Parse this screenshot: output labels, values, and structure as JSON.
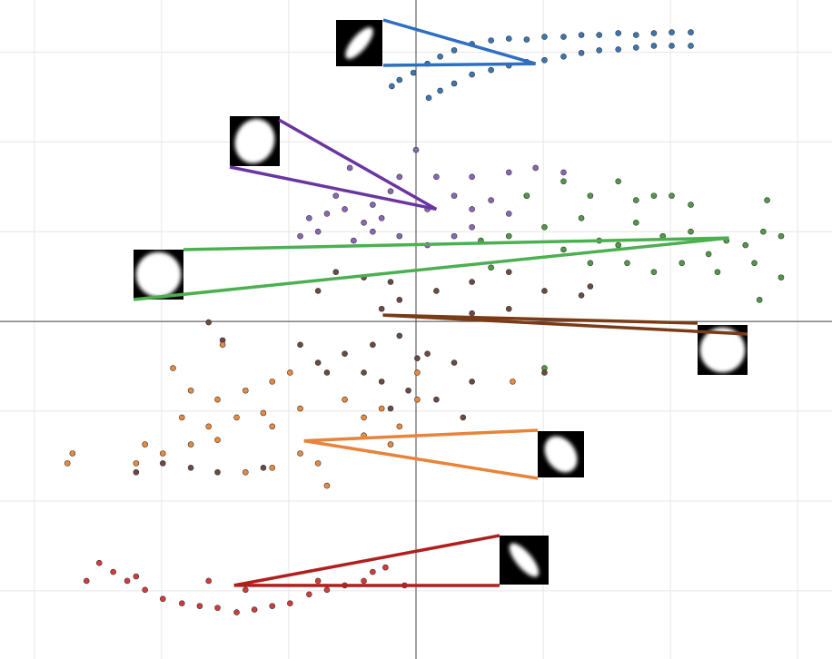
{
  "chart_data": {
    "type": "scatter",
    "title": "",
    "xlabel": "",
    "ylabel": "",
    "xlim": [
      -3.27,
      3.27
    ],
    "ylim": [
      -3.76,
      3.58
    ],
    "grid": true,
    "grid_step": {
      "x": 1,
      "y": 1
    },
    "axes_through_origin": true,
    "tick_labels_shown": false,
    "legend": "none",
    "colors": {
      "grid": "#e6e6e6",
      "axis": "#444444",
      "marker_edge": "#333333"
    },
    "series": [
      {
        "color": "#3a78b5",
        "line_color": "#2f6fbf",
        "thumbnail": "diagonal-ellipse-rising",
        "anchor": [
          0.94,
          2.87
        ],
        "points": [
          [
            -0.19,
            2.62
          ],
          [
            -0.13,
            2.69
          ],
          [
            -0.02,
            2.77
          ],
          [
            0.09,
            2.87
          ],
          [
            0.19,
            2.95
          ],
          [
            0.3,
            3.02
          ],
          [
            0.44,
            3.09
          ],
          [
            0.59,
            3.13
          ],
          [
            0.73,
            3.15
          ],
          [
            0.87,
            3.14
          ],
          [
            1.01,
            3.17
          ],
          [
            1.16,
            3.17
          ],
          [
            1.3,
            3.19
          ],
          [
            1.44,
            3.19
          ],
          [
            1.59,
            3.21
          ],
          [
            1.73,
            3.19
          ],
          [
            1.87,
            3.21
          ],
          [
            2.01,
            3.22
          ],
          [
            2.16,
            3.22
          ],
          [
            0.1,
            2.49
          ],
          [
            0.19,
            2.57
          ],
          [
            0.3,
            2.65
          ],
          [
            0.44,
            2.75
          ],
          [
            0.59,
            2.8
          ],
          [
            0.73,
            2.85
          ],
          [
            0.87,
            2.89
          ],
          [
            1.01,
            2.91
          ],
          [
            1.16,
            2.95
          ],
          [
            1.3,
            2.99
          ],
          [
            1.44,
            3.02
          ],
          [
            1.59,
            3.03
          ],
          [
            1.73,
            3.05
          ],
          [
            1.87,
            3.07
          ],
          [
            2.01,
            3.07
          ],
          [
            2.16,
            3.07
          ]
        ]
      },
      {
        "color": "#8a66b8",
        "line_color": "#6a35a0",
        "thumbnail": "round-blob",
        "anchor": [
          0.16,
          1.25
        ],
        "points": [
          [
            0,
            1.91
          ],
          [
            -0.52,
            1.71
          ],
          [
            -0.13,
            1.61
          ],
          [
            0.16,
            1.61
          ],
          [
            0.44,
            1.61
          ],
          [
            0.73,
            1.66
          ],
          [
            0.94,
            1.71
          ],
          [
            1.16,
            1.66
          ],
          [
            -0.84,
            1.15
          ],
          [
            -0.7,
            1.2
          ],
          [
            -0.56,
            1.25
          ],
          [
            -0.41,
            1.1
          ],
          [
            -0.27,
            1.15
          ],
          [
            -0.13,
            0.95
          ],
          [
            0.09,
            1.25
          ],
          [
            0.3,
            1.4
          ],
          [
            0.44,
            1.25
          ],
          [
            0.59,
            1.35
          ],
          [
            0.73,
            1.2
          ],
          [
            0.87,
            1.4
          ],
          [
            -0.49,
            0.9
          ],
          [
            -0.34,
            1.0
          ],
          [
            -0.77,
            1.0
          ],
          [
            0.09,
            0.85
          ],
          [
            0.3,
            0.95
          ],
          [
            -0.91,
            0.95
          ],
          [
            0.44,
            1.05
          ],
          [
            -0.63,
            1.4
          ],
          [
            -0.2,
            1.45
          ],
          [
            -0.34,
            1.3
          ]
        ]
      },
      {
        "color": "#4f9a45",
        "line_color": "#4caf50",
        "thumbnail": "circle",
        "anchor": [
          2.46,
          0.93
        ],
        "points": [
          [
            0.87,
            1.4
          ],
          [
            1.16,
            1.56
          ],
          [
            1.37,
            1.4
          ],
          [
            1.59,
            1.56
          ],
          [
            1.73,
            1.35
          ],
          [
            1.87,
            1.4
          ],
          [
            2.01,
            1.4
          ],
          [
            2.16,
            1.3
          ],
          [
            1.01,
            1.05
          ],
          [
            1.3,
            1.15
          ],
          [
            1.44,
            0.9
          ],
          [
            1.73,
            1.1
          ],
          [
            1.94,
            0.95
          ],
          [
            2.16,
            1.0
          ],
          [
            0.51,
            0.9
          ],
          [
            0.73,
            0.95
          ],
          [
            1.16,
            0.8
          ],
          [
            1.37,
            0.65
          ],
          [
            1.66,
            0.65
          ],
          [
            1.87,
            0.55
          ],
          [
            2.09,
            0.65
          ],
          [
            2.3,
            0.75
          ],
          [
            2.44,
            0.9
          ],
          [
            2.59,
            0.85
          ],
          [
            2.73,
            1.0
          ],
          [
            2.87,
            0.95
          ],
          [
            2.76,
            1.35
          ],
          [
            2.87,
            0.49
          ],
          [
            2.7,
            0.24
          ],
          [
            0.59,
            0.6
          ],
          [
            1.01,
            -0.52
          ],
          [
            1.59,
            0.85
          ],
          [
            2.37,
            0.55
          ],
          [
            2.66,
            0.65
          ]
        ]
      },
      {
        "color": "#6b4a42",
        "line_color": "#7a3b17",
        "thumbnail": "circle",
        "anchor": [
          -0.26,
          0.07
        ],
        "points": [
          [
            -0.77,
            0.34
          ],
          [
            -0.63,
            0.55
          ],
          [
            -0.41,
            0.49
          ],
          [
            -0.2,
            0.44
          ],
          [
            -0.27,
            0.14
          ],
          [
            -0.13,
            0.24
          ],
          [
            0.16,
            0.34
          ],
          [
            0.44,
            0.44
          ],
          [
            0.73,
            0.55
          ],
          [
            1.01,
            0.34
          ],
          [
            1.3,
            0.29
          ],
          [
            0.44,
            0.09
          ],
          [
            0.73,
            0.14
          ],
          [
            -0.91,
            -0.26
          ],
          [
            -0.77,
            -0.46
          ],
          [
            -0.56,
            -0.36
          ],
          [
            -0.34,
            -0.26
          ],
          [
            -0.13,
            -0.16
          ],
          [
            0.09,
            -0.36
          ],
          [
            0.3,
            -0.46
          ],
          [
            0.44,
            -0.67
          ],
          [
            0.16,
            -0.87
          ],
          [
            0.37,
            -1.07
          ],
          [
            -0.27,
            -0.67
          ],
          [
            -0.06,
            -0.77
          ],
          [
            -0.7,
            -0.57
          ],
          [
            -1.63,
            -0.01
          ],
          [
            -1.52,
            -0.21
          ],
          [
            -2.2,
            -1.68
          ],
          [
            -1.99,
            -1.58
          ],
          [
            -1.77,
            -1.63
          ],
          [
            -1.56,
            -1.68
          ],
          [
            -1.2,
            -1.63
          ],
          [
            -0.41,
            -0.57
          ],
          [
            -0.2,
            -0.97
          ],
          [
            0.01,
            -0.41
          ],
          [
            1.01,
            -0.57
          ],
          [
            1.37,
            0.39
          ]
        ]
      },
      {
        "color": "#ec8a3c",
        "line_color": "#e8833a",
        "thumbnail": "tilted-ellipse-falling",
        "anchor": [
          -0.88,
          -1.33
        ],
        "points": [
          [
            -1.91,
            -0.52
          ],
          [
            -1.77,
            -0.77
          ],
          [
            -1.56,
            -0.87
          ],
          [
            -1.34,
            -0.77
          ],
          [
            -1.13,
            -0.67
          ],
          [
            -0.99,
            -0.57
          ],
          [
            -1.84,
            -1.07
          ],
          [
            -1.63,
            -1.17
          ],
          [
            -1.41,
            -1.07
          ],
          [
            -1.2,
            -1.02
          ],
          [
            -2.13,
            -1.37
          ],
          [
            -1.99,
            -1.47
          ],
          [
            -1.77,
            -1.37
          ],
          [
            -1.56,
            -1.32
          ],
          [
            -2.2,
            -1.58
          ],
          [
            -1.13,
            -1.17
          ],
          [
            -0.91,
            -1.47
          ],
          [
            -0.77,
            -1.58
          ],
          [
            -0.7,
            -1.83
          ],
          [
            -0.56,
            -0.87
          ],
          [
            -0.41,
            -1.07
          ],
          [
            -0.27,
            -0.97
          ],
          [
            -0.13,
            -1.17
          ],
          [
            0.01,
            -0.87
          ],
          [
            -0.41,
            -1.27
          ],
          [
            -0.2,
            -1.37
          ],
          [
            -2.7,
            -1.47
          ],
          [
            -2.74,
            -1.58
          ],
          [
            -1.52,
            -0.26
          ],
          [
            0.76,
            -0.67
          ],
          [
            -0.91,
            -0.97
          ],
          [
            0.01,
            -0.57
          ],
          [
            -1.34,
            -1.68
          ],
          [
            -1.13,
            -1.63
          ]
        ]
      },
      {
        "color": "#d63a3a",
        "line_color": "#b21e1e",
        "thumbnail": "diagonal-ellipse-falling",
        "anchor": [
          -1.43,
          -2.94
        ],
        "points": [
          [
            -2.59,
            -2.89
          ],
          [
            -2.49,
            -2.69
          ],
          [
            -2.38,
            -2.79
          ],
          [
            -2.27,
            -2.89
          ],
          [
            -2.13,
            -2.99
          ],
          [
            -1.99,
            -3.09
          ],
          [
            -1.84,
            -3.14
          ],
          [
            -1.7,
            -3.17
          ],
          [
            -1.56,
            -3.19
          ],
          [
            -1.41,
            -3.24
          ],
          [
            -1.27,
            -3.21
          ],
          [
            -1.13,
            -3.17
          ],
          [
            -0.99,
            -3.14
          ],
          [
            -0.84,
            -3.04
          ],
          [
            -0.7,
            -2.99
          ],
          [
            -0.56,
            -2.94
          ],
          [
            -0.41,
            -2.89
          ],
          [
            -0.34,
            -2.79
          ],
          [
            -0.24,
            -2.74
          ],
          [
            -0.09,
            -2.94
          ],
          [
            -1.34,
            -2.99
          ],
          [
            -1.63,
            -2.89
          ],
          [
            -2.2,
            -2.84
          ],
          [
            -0.77,
            -2.89
          ]
        ]
      }
    ]
  }
}
